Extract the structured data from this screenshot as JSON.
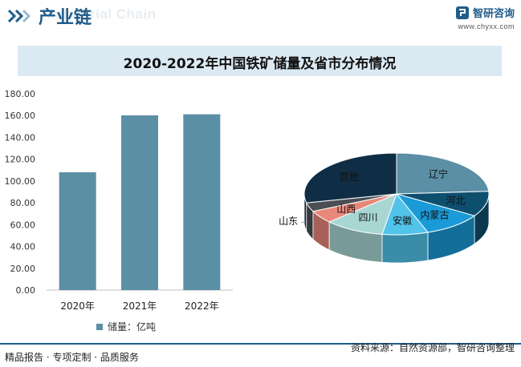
{
  "header": {
    "section_title": "产业链",
    "watermark_text": "Industrial Chain",
    "brand_name": "智研咨询",
    "brand_url": "www.chyxx.com"
  },
  "colors": {
    "brand_blue": "#1f5c8a",
    "bar": "#5b8fa6",
    "title_bg": "#dbe9f3"
  },
  "chart_data": [
    {
      "type": "bar",
      "title": "2020-2022年中国铁矿储量及省市分布情况",
      "categories": [
        "2020年",
        "2021年",
        "2022年"
      ],
      "series": [
        {
          "name": "储量：亿吨",
          "values": [
            108.0,
            160.2,
            161.2
          ]
        }
      ],
      "ylim": [
        0,
        180
      ],
      "yticks": [
        "0.00",
        "20.00",
        "40.00",
        "60.00",
        "80.00",
        "100.00",
        "120.00",
        "140.00",
        "160.00",
        "180.00"
      ],
      "ytick_values": [
        0,
        20,
        40,
        60,
        80,
        100,
        120,
        140,
        160,
        180
      ],
      "legend": "bottom",
      "grid": false
    },
    {
      "type": "pie",
      "style": "3d",
      "slices": [
        {
          "label": "辽宁",
          "value": 24.0,
          "color": "#5b8fa6"
        },
        {
          "label": "河北",
          "value": 10.0,
          "color": "#0e4f6e"
        },
        {
          "label": "内蒙古",
          "value": 10.5,
          "color": "#1a9ad6"
        },
        {
          "label": "安徽",
          "value": 8.0,
          "color": "#52c3ea"
        },
        {
          "label": "四川",
          "value": 10.5,
          "color": "#a7d6d3"
        },
        {
          "label": "山西",
          "value": 5.0,
          "color": "#e9877a"
        },
        {
          "label": "山东",
          "value": 3.5,
          "color": "#4a4f53"
        },
        {
          "label": "其他",
          "value": 28.5,
          "color": "#0f2e45"
        }
      ]
    }
  ],
  "footer": {
    "left_text": "精品报告 · 专项定制 · 品质服务",
    "source_text": "资料来源：自然资源部，智研咨询整理"
  }
}
